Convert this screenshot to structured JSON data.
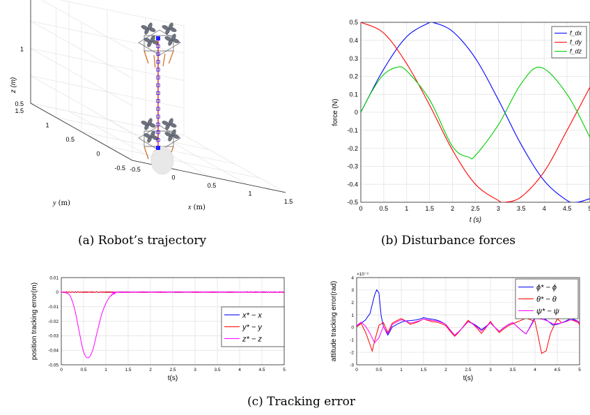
{
  "captions": {
    "a": "(a)  Robot’s trajectory",
    "b": "(b)  Disturbance forces",
    "c": "(c)  Tracking error"
  },
  "chart_data": [
    {
      "id": "a",
      "type": "scatter",
      "title": "",
      "xlabel": "x (m)",
      "ylabel": "y (m)",
      "zlabel": "z (m)",
      "xticks": [
        "-0.5",
        "0",
        "0.5",
        "1",
        "1.5"
      ],
      "yticks": [
        "-0.5",
        "0",
        "0.5",
        "1",
        "1.5"
      ],
      "zticks": [
        "0.5",
        "1",
        "1.5"
      ],
      "xlim": [
        -0.5,
        1.5
      ],
      "ylim": [
        -0.5,
        1.5
      ],
      "zlim": [
        0.5,
        1.5
      ],
      "grid": true,
      "trajectory": {
        "x": 0.5,
        "y": 0.5,
        "z_start": 0.5,
        "z_end": 1.5
      }
    },
    {
      "id": "b",
      "type": "line",
      "xlabel": "t (s)",
      "ylabel": "force (N)",
      "xlim": [
        0,
        5
      ],
      "ylim": [
        -0.5,
        0.5
      ],
      "xticks": [
        "0",
        "0.5",
        "1",
        "1.5",
        "2",
        "2.5",
        "3",
        "3.5",
        "4",
        "4.5",
        "5"
      ],
      "yticks": [
        "0.5",
        "0.4",
        "0.3",
        "0.2",
        "0.1",
        "0",
        "-0.1",
        "-0.2",
        "-0.3",
        "-0.4",
        "-0.5"
      ],
      "grid": true,
      "legend_position": "top-right",
      "series": [
        {
          "name": "f_dx",
          "color": "#0000ff",
          "x": [
            0,
            0.5,
            1.0,
            1.5,
            1.57,
            2.0,
            2.5,
            3.0,
            3.5,
            4.0,
            4.5,
            4.71,
            5.0
          ],
          "y": [
            0,
            0.24,
            0.42,
            0.499,
            0.5,
            0.45,
            0.3,
            0.07,
            -0.18,
            -0.38,
            -0.49,
            -0.5,
            -0.48
          ]
        },
        {
          "name": "f_dy",
          "color": "#ff0000",
          "x": [
            0,
            0.5,
            1.0,
            1.5,
            2.0,
            2.5,
            3.0,
            3.14,
            3.5,
            4.0,
            4.5,
            5.0
          ],
          "y": [
            0.5,
            0.44,
            0.27,
            0.04,
            -0.21,
            -0.4,
            -0.49,
            -0.5,
            -0.47,
            -0.33,
            -0.1,
            0.14
          ]
        },
        {
          "name": "f_dz",
          "color": "#00cc00",
          "x": [
            0,
            0.25,
            0.5,
            0.785,
            1.0,
            1.5,
            2.0,
            2.36,
            2.5,
            3.0,
            3.5,
            3.93,
            4.5,
            5.0
          ],
          "y": [
            0,
            0.12,
            0.21,
            0.25,
            0.23,
            0.07,
            -0.19,
            -0.25,
            -0.24,
            -0.07,
            0.16,
            0.25,
            0.1,
            -0.14
          ]
        }
      ]
    },
    {
      "id": "c1",
      "type": "line",
      "xlabel": "t(s)",
      "ylabel": "position tracking error(m)",
      "xlim": [
        0,
        5
      ],
      "ylim": [
        -0.05,
        0.01
      ],
      "xticks": [
        "0",
        "0.5",
        "1",
        "1.5",
        "2",
        "2.5",
        "3",
        "3.5",
        "4",
        "4.5",
        "5"
      ],
      "yticks": [
        "0.01",
        "0",
        "-0.01",
        "-0.02",
        "-0.03",
        "-0.04",
        "-0.05"
      ],
      "grid": true,
      "legend_position": "right",
      "series": [
        {
          "name": "x* − x",
          "color": "#0000ff",
          "x": [
            0,
            1,
            2,
            3,
            4,
            5
          ],
          "y": [
            0,
            0,
            0,
            0,
            0,
            0
          ]
        },
        {
          "name": "y* − y",
          "color": "#ff0000",
          "x": [
            0,
            1,
            2,
            3,
            4,
            5
          ],
          "y": [
            0,
            0,
            0,
            0,
            0,
            0
          ]
        },
        {
          "name": "z* − z",
          "color": "#ff00ff",
          "x": [
            0,
            0.1,
            0.2,
            0.3,
            0.4,
            0.5,
            0.6,
            0.7,
            0.8,
            0.9,
            1.0,
            1.1,
            1.2,
            1.5,
            5.0
          ],
          "y": [
            0,
            -0.0005,
            -0.003,
            -0.012,
            -0.027,
            -0.041,
            -0.045,
            -0.04,
            -0.028,
            -0.016,
            -0.008,
            -0.003,
            -0.001,
            0,
            0
          ]
        }
      ]
    },
    {
      "id": "c2",
      "type": "line",
      "xlabel": "t(s)",
      "ylabel": "attitude tracking error(rad)",
      "yexponent": "×10⁻³",
      "xlim": [
        0,
        5
      ],
      "ylim": [
        -3,
        4
      ],
      "xticks": [
        "0",
        "0.5",
        "1",
        "1.5",
        "2",
        "2.5",
        "3",
        "3.5",
        "4",
        "4.5",
        "5"
      ],
      "yticks": [
        "4",
        "3",
        "2",
        "1",
        "0",
        "-1",
        "-2",
        "-3"
      ],
      "grid": true,
      "legend_position": "top-right",
      "series": [
        {
          "name": "ϕ* − ϕ",
          "color": "#0000ff",
          "x": [
            0,
            0.1,
            0.2,
            0.3,
            0.4,
            0.45,
            0.5,
            0.55,
            0.6,
            0.7,
            0.8,
            1.0,
            1.2,
            1.5,
            1.7,
            2.0,
            2.2,
            2.5,
            2.8,
            3.0,
            3.2,
            3.5,
            3.8,
            4.0,
            4.2,
            4.4,
            4.6,
            4.8,
            5.0
          ],
          "y": [
            0.2,
            0.3,
            0.5,
            1.0,
            2.5,
            3.0,
            2.8,
            1.0,
            0.2,
            -0.5,
            0.1,
            0.3,
            0.5,
            0.9,
            0.6,
            0.2,
            -0.5,
            0.4,
            -0.2,
            0.5,
            -0.3,
            0.3,
            -0.4,
            0.8,
            0.6,
            0.2,
            0.5,
            0.7,
            0.3
          ]
        },
        {
          "name": "θ* − θ",
          "color": "#ff0000",
          "x": [
            0,
            0.1,
            0.2,
            0.3,
            0.35,
            0.4,
            0.5,
            0.6,
            0.7,
            0.8,
            1.0,
            1.2,
            1.5,
            1.7,
            2.0,
            2.2,
            2.5,
            2.8,
            3.0,
            3.2,
            3.5,
            3.8,
            4.0,
            4.15,
            4.25,
            4.35,
            4.5,
            4.6,
            4.8,
            5.0
          ],
          "y": [
            0.1,
            0.3,
            -0.5,
            -1.5,
            -2.0,
            -1.2,
            0.2,
            0.5,
            -0.3,
            0.4,
            0.6,
            0.2,
            0.8,
            0.4,
            0.1,
            -0.6,
            0.5,
            -0.5,
            0.6,
            -0.4,
            0.2,
            0.9,
            0.5,
            -2.2,
            -2.0,
            -0.5,
            0.8,
            0.5,
            0.6,
            0.2
          ]
        },
        {
          "name": "ψ* − ψ",
          "color": "#ff00ff",
          "x": [
            0,
            0.1,
            0.2,
            0.3,
            0.4,
            0.5,
            0.6,
            0.7,
            0.8,
            1.0,
            1.2,
            1.5,
            1.7,
            2.0,
            2.2,
            2.5,
            2.8,
            3.0,
            3.2,
            3.5,
            3.8,
            4.0,
            4.2,
            4.4,
            4.6,
            4.8,
            5.0
          ],
          "y": [
            0.2,
            0.4,
            0.0,
            -0.6,
            -1.3,
            -0.8,
            0.2,
            -0.4,
            0.3,
            0.5,
            0.3,
            0.8,
            0.5,
            0.2,
            -0.5,
            0.4,
            -0.3,
            0.5,
            -0.3,
            0.3,
            -0.4,
            0.7,
            0.5,
            0.3,
            0.5,
            0.6,
            0.3
          ]
        }
      ]
    }
  ]
}
